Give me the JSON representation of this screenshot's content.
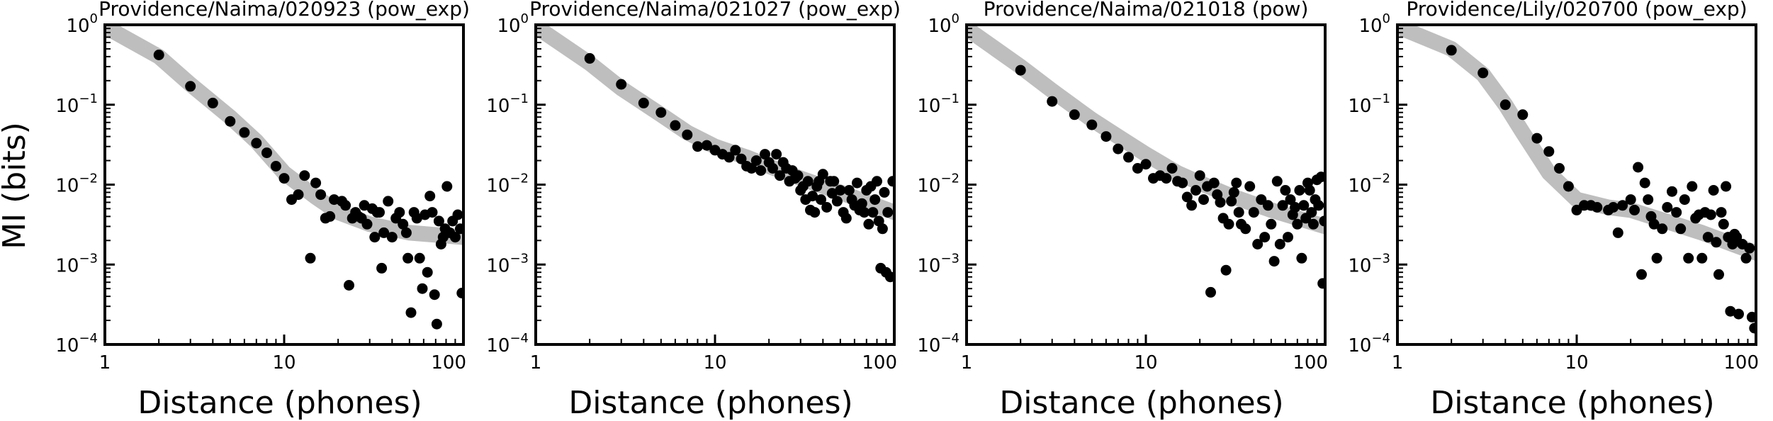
{
  "figure": {
    "ylabel": "MI (bits)",
    "colors": {
      "points": "#000000",
      "fit": "#bebebe",
      "axes": "#000000",
      "background": "#ffffff"
    }
  },
  "chart_data": [
    {
      "type": "scatter",
      "title": "Providence/Naima/020923 (pow_exp)",
      "xlabel": "Distance (phones)",
      "ylabel": "MI (bits)",
      "xscale": "log",
      "yscale": "log",
      "xlim": [
        1,
        100
      ],
      "ylim": [
        0.0001,
        1
      ],
      "x_ticks": [
        1,
        10,
        100
      ],
      "x_tick_labels": [
        "1",
        "10",
        "100"
      ],
      "y_ticks": [
        0.0001,
        0.001,
        0.01,
        0.1,
        1
      ],
      "y_tick_labels": [
        {
          "base": "10",
          "exp": "−4"
        },
        {
          "base": "10",
          "exp": "−3"
        },
        {
          "base": "10",
          "exp": "−2"
        },
        {
          "base": "10",
          "exp": "−1"
        },
        {
          "base": "10",
          "exp": "0"
        }
      ],
      "grid": false,
      "points": [
        [
          2,
          0.42
        ],
        [
          3,
          0.17
        ],
        [
          4,
          0.105
        ],
        [
          5,
          0.062
        ],
        [
          6,
          0.045
        ],
        [
          7,
          0.033
        ],
        [
          8,
          0.025
        ],
        [
          9,
          0.017
        ],
        [
          10,
          0.012
        ],
        [
          11,
          0.0065
        ],
        [
          12,
          0.0075
        ],
        [
          13,
          0.013
        ],
        [
          14,
          0.0012
        ],
        [
          15,
          0.0105
        ],
        [
          16,
          0.0075
        ],
        [
          17,
          0.0038
        ],
        [
          18,
          0.004
        ],
        [
          19,
          0.0065
        ],
        [
          21,
          0.0062
        ],
        [
          22,
          0.0055
        ],
        [
          23,
          0.00055
        ],
        [
          24,
          0.0038
        ],
        [
          25,
          0.0045
        ],
        [
          26,
          0.004
        ],
        [
          27,
          0.0038
        ],
        [
          28,
          0.0055
        ],
        [
          29,
          0.0032
        ],
        [
          31,
          0.005
        ],
        [
          32,
          0.0022
        ],
        [
          33,
          0.0045
        ],
        [
          34,
          0.0045
        ],
        [
          35,
          0.0009
        ],
        [
          36,
          0.0025
        ],
        [
          38,
          0.0062
        ],
        [
          40,
          0.0022
        ],
        [
          42,
          0.0038
        ],
        [
          44,
          0.0045
        ],
        [
          46,
          0.0032
        ],
        [
          48,
          0.0025
        ],
        [
          49,
          0.0012
        ],
        [
          51,
          0.00025
        ],
        [
          53,
          0.0045
        ],
        [
          55,
          0.0038
        ],
        [
          57,
          0.0012
        ],
        [
          59,
          0.0005
        ],
        [
          61,
          0.0042
        ],
        [
          63,
          0.0008
        ],
        [
          65,
          0.0072
        ],
        [
          67,
          0.0045
        ],
        [
          69,
          0.00042
        ],
        [
          71,
          0.00018
        ],
        [
          73,
          0.0035
        ],
        [
          75,
          0.0018
        ],
        [
          77,
          0.0022
        ],
        [
          79,
          0.0028
        ],
        [
          81,
          0.0095
        ],
        [
          84,
          0.0025
        ],
        [
          87,
          0.0035
        ],
        [
          90,
          0.0022
        ],
        [
          93,
          0.0042
        ],
        [
          96,
          0.0028
        ],
        [
          98,
          0.00044
        ]
      ],
      "fit": [
        [
          1,
          0.95
        ],
        [
          2,
          0.4
        ],
        [
          3,
          0.18
        ],
        [
          5,
          0.07
        ],
        [
          7,
          0.035
        ],
        [
          10,
          0.014
        ],
        [
          15,
          0.007
        ],
        [
          20,
          0.0045
        ],
        [
          30,
          0.0032
        ],
        [
          50,
          0.0025
        ],
        [
          100,
          0.0022
        ]
      ]
    },
    {
      "type": "scatter",
      "title": "Providence/Naima/021027 (pow_exp)",
      "xlabel": "Distance (phones)",
      "xscale": "log",
      "yscale": "log",
      "xlim": [
        1,
        100
      ],
      "ylim": [
        0.0001,
        1
      ],
      "x_ticks": [
        1,
        10,
        100
      ],
      "x_tick_labels": [
        "1",
        "10",
        "100"
      ],
      "y_ticks": [
        0.0001,
        0.001,
        0.01,
        0.1,
        1
      ],
      "y_tick_labels": [
        {
          "base": "10",
          "exp": "−4"
        },
        {
          "base": "10",
          "exp": "−3"
        },
        {
          "base": "10",
          "exp": "−2"
        },
        {
          "base": "10",
          "exp": "−1"
        },
        {
          "base": "10",
          "exp": "0"
        }
      ],
      "grid": false,
      "points": [
        [
          2,
          0.38
        ],
        [
          3,
          0.18
        ],
        [
          4,
          0.105
        ],
        [
          5,
          0.08
        ],
        [
          6,
          0.055
        ],
        [
          7,
          0.042
        ],
        [
          8,
          0.03
        ],
        [
          9,
          0.031
        ],
        [
          10,
          0.027
        ],
        [
          11,
          0.024
        ],
        [
          12,
          0.022
        ],
        [
          13,
          0.027
        ],
        [
          14,
          0.021
        ],
        [
          15,
          0.017
        ],
        [
          16,
          0.016
        ],
        [
          17,
          0.02
        ],
        [
          18,
          0.015
        ],
        [
          19,
          0.024
        ],
        [
          20,
          0.019
        ],
        [
          21,
          0.016
        ],
        [
          22,
          0.024
        ],
        [
          23,
          0.013
        ],
        [
          24,
          0.019
        ],
        [
          25,
          0.016
        ],
        [
          26,
          0.011
        ],
        [
          27,
          0.015
        ],
        [
          28,
          0.012
        ],
        [
          29,
          0.013
        ],
        [
          30,
          0.0085
        ],
        [
          31,
          0.0095
        ],
        [
          32,
          0.0065
        ],
        [
          33,
          0.011
        ],
        [
          34,
          0.0048
        ],
        [
          35,
          0.0072
        ],
        [
          36,
          0.0045
        ],
        [
          37,
          0.0095
        ],
        [
          38,
          0.011
        ],
        [
          39,
          0.0065
        ],
        [
          40,
          0.0135
        ],
        [
          42,
          0.0052
        ],
        [
          44,
          0.011
        ],
        [
          45,
          0.0078
        ],
        [
          46,
          0.011
        ],
        [
          48,
          0.0062
        ],
        [
          50,
          0.0085
        ],
        [
          52,
          0.0045
        ],
        [
          54,
          0.0038
        ],
        [
          56,
          0.0085
        ],
        [
          58,
          0.0065
        ],
        [
          60,
          0.0055
        ],
        [
          62,
          0.0105
        ],
        [
          64,
          0.0048
        ],
        [
          66,
          0.0058
        ],
        [
          68,
          0.0045
        ],
        [
          70,
          0.0085
        ],
        [
          72,
          0.0032
        ],
        [
          74,
          0.0095
        ],
        [
          76,
          0.0045
        ],
        [
          78,
          0.0065
        ],
        [
          80,
          0.011
        ],
        [
          82,
          0.0035
        ],
        [
          84,
          0.0009
        ],
        [
          86,
          0.0028
        ],
        [
          88,
          0.008
        ],
        [
          90,
          0.0008
        ],
        [
          92,
          0.0045
        ],
        [
          95,
          0.0007
        ],
        [
          98,
          0.011
        ]
      ],
      "fit": [
        [
          1,
          0.95
        ],
        [
          2,
          0.33
        ],
        [
          3,
          0.16
        ],
        [
          5,
          0.075
        ],
        [
          7,
          0.045
        ],
        [
          10,
          0.03
        ],
        [
          15,
          0.022
        ],
        [
          20,
          0.017
        ],
        [
          30,
          0.012
        ],
        [
          50,
          0.008
        ],
        [
          100,
          0.0045
        ]
      ]
    },
    {
      "type": "scatter",
      "title": "Providence/Naima/021018 (pow)",
      "xlabel": "Distance (phones)",
      "xscale": "log",
      "yscale": "log",
      "xlim": [
        1,
        100
      ],
      "ylim": [
        0.0001,
        1
      ],
      "x_ticks": [
        1,
        10,
        100
      ],
      "x_tick_labels": [
        "1",
        "10",
        "100"
      ],
      "y_ticks": [
        0.0001,
        0.001,
        0.01,
        0.1,
        1
      ],
      "y_tick_labels": [
        {
          "base": "10",
          "exp": "−4"
        },
        {
          "base": "10",
          "exp": "−3"
        },
        {
          "base": "10",
          "exp": "−2"
        },
        {
          "base": "10",
          "exp": "−1"
        },
        {
          "base": "10",
          "exp": "0"
        }
      ],
      "grid": false,
      "points": [
        [
          2,
          0.27
        ],
        [
          3,
          0.11
        ],
        [
          4,
          0.075
        ],
        [
          5,
          0.056
        ],
        [
          6,
          0.04
        ],
        [
          7,
          0.028
        ],
        [
          8,
          0.022
        ],
        [
          9,
          0.016
        ],
        [
          10,
          0.018
        ],
        [
          11,
          0.012
        ],
        [
          12,
          0.013
        ],
        [
          13,
          0.012
        ],
        [
          14,
          0.016
        ],
        [
          15,
          0.011
        ],
        [
          16,
          0.0105
        ],
        [
          17,
          0.007
        ],
        [
          18,
          0.0055
        ],
        [
          19,
          0.0085
        ],
        [
          20,
          0.013
        ],
        [
          21,
          0.0065
        ],
        [
          22,
          0.0095
        ],
        [
          23,
          0.00045
        ],
        [
          24,
          0.0105
        ],
        [
          25,
          0.0075
        ],
        [
          26,
          0.006
        ],
        [
          27,
          0.0038
        ],
        [
          28,
          0.00085
        ],
        [
          29,
          0.0032
        ],
        [
          30,
          0.0062
        ],
        [
          31,
          0.008
        ],
        [
          32,
          0.0105
        ],
        [
          33,
          0.0045
        ],
        [
          34,
          0.0032
        ],
        [
          36,
          0.0028
        ],
        [
          38,
          0.0095
        ],
        [
          40,
          0.0045
        ],
        [
          42,
          0.0018
        ],
        [
          44,
          0.0065
        ],
        [
          46,
          0.0022
        ],
        [
          48,
          0.0055
        ],
        [
          50,
          0.0032
        ],
        [
          52,
          0.0011
        ],
        [
          54,
          0.011
        ],
        [
          56,
          0.0018
        ],
        [
          58,
          0.0055
        ],
        [
          60,
          0.0085
        ],
        [
          62,
          0.0022
        ],
        [
          64,
          0.0065
        ],
        [
          66,
          0.0042
        ],
        [
          68,
          0.0052
        ],
        [
          70,
          0.0032
        ],
        [
          72,
          0.0085
        ],
        [
          74,
          0.0012
        ],
        [
          76,
          0.0055
        ],
        [
          78,
          0.0038
        ],
        [
          80,
          0.0105
        ],
        [
          82,
          0.0085
        ],
        [
          84,
          0.0045
        ],
        [
          86,
          0.0032
        ],
        [
          88,
          0.0065
        ],
        [
          90,
          0.0115
        ],
        [
          92,
          0.0055
        ],
        [
          95,
          0.0125
        ],
        [
          97,
          0.00058
        ],
        [
          99,
          0.0035
        ]
      ],
      "fit": [
        [
          1,
          0.9
        ],
        [
          2,
          0.3
        ],
        [
          3,
          0.15
        ],
        [
          5,
          0.065
        ],
        [
          7,
          0.04
        ],
        [
          10,
          0.024
        ],
        [
          15,
          0.014
        ],
        [
          20,
          0.0105
        ],
        [
          30,
          0.0072
        ],
        [
          50,
          0.0048
        ],
        [
          100,
          0.003
        ]
      ]
    },
    {
      "type": "scatter",
      "title": "Providence/Lily/020700 (pow_exp)",
      "xlabel": "Distance (phones)",
      "xscale": "log",
      "yscale": "log",
      "xlim": [
        1,
        100
      ],
      "ylim": [
        0.0001,
        1
      ],
      "x_ticks": [
        1,
        10,
        100
      ],
      "x_tick_labels": [
        "1",
        "10",
        "100"
      ],
      "y_ticks": [
        0.0001,
        0.001,
        0.01,
        0.1,
        1
      ],
      "y_tick_labels": [
        {
          "base": "10",
          "exp": "−4"
        },
        {
          "base": "10",
          "exp": "−3"
        },
        {
          "base": "10",
          "exp": "−2"
        },
        {
          "base": "10",
          "exp": "−1"
        },
        {
          "base": "10",
          "exp": "0"
        }
      ],
      "grid": false,
      "points": [
        [
          2,
          0.48
        ],
        [
          3,
          0.25
        ],
        [
          4,
          0.1
        ],
        [
          5,
          0.075
        ],
        [
          6,
          0.038
        ],
        [
          7,
          0.026
        ],
        [
          8,
          0.016
        ],
        [
          9,
          0.0095
        ],
        [
          10,
          0.0048
        ],
        [
          11,
          0.0055
        ],
        [
          12,
          0.0055
        ],
        [
          13,
          0.0052
        ],
        [
          15,
          0.0048
        ],
        [
          16,
          0.0052
        ],
        [
          17,
          0.0025
        ],
        [
          18,
          0.0055
        ],
        [
          20,
          0.0065
        ],
        [
          21,
          0.0048
        ],
        [
          22,
          0.0165
        ],
        [
          23,
          0.00075
        ],
        [
          24,
          0.0105
        ],
        [
          25,
          0.0065
        ],
        [
          26,
          0.004
        ],
        [
          27,
          0.0032
        ],
        [
          28,
          0.0012
        ],
        [
          30,
          0.0028
        ],
        [
          32,
          0.0052
        ],
        [
          34,
          0.0082
        ],
        [
          36,
          0.0045
        ],
        [
          38,
          0.0028
        ],
        [
          40,
          0.0065
        ],
        [
          42,
          0.0012
        ],
        [
          44,
          0.0095
        ],
        [
          46,
          0.0038
        ],
        [
          48,
          0.0042
        ],
        [
          50,
          0.0012
        ],
        [
          52,
          0.0045
        ],
        [
          54,
          0.0022
        ],
        [
          56,
          0.0042
        ],
        [
          58,
          0.0085
        ],
        [
          60,
          0.0019
        ],
        [
          62,
          0.00075
        ],
        [
          64,
          0.0045
        ],
        [
          66,
          0.0032
        ],
        [
          68,
          0.0095
        ],
        [
          70,
          0.0022
        ],
        [
          72,
          0.00026
        ],
        [
          74,
          0.0018
        ],
        [
          76,
          0.0024
        ],
        [
          78,
          0.0022
        ],
        [
          80,
          0.00024
        ],
        [
          84,
          0.0018
        ],
        [
          88,
          0.0012
        ],
        [
          92,
          0.0016
        ],
        [
          95,
          0.00022
        ],
        [
          98,
          0.00016
        ]
      ],
      "fit": [
        [
          1,
          0.95
        ],
        [
          2,
          0.5
        ],
        [
          3,
          0.24
        ],
        [
          4,
          0.1
        ],
        [
          5,
          0.045
        ],
        [
          7,
          0.014
        ],
        [
          10,
          0.0065
        ],
        [
          15,
          0.0052
        ],
        [
          20,
          0.0048
        ],
        [
          30,
          0.0036
        ],
        [
          50,
          0.0025
        ],
        [
          100,
          0.0014
        ]
      ]
    }
  ]
}
